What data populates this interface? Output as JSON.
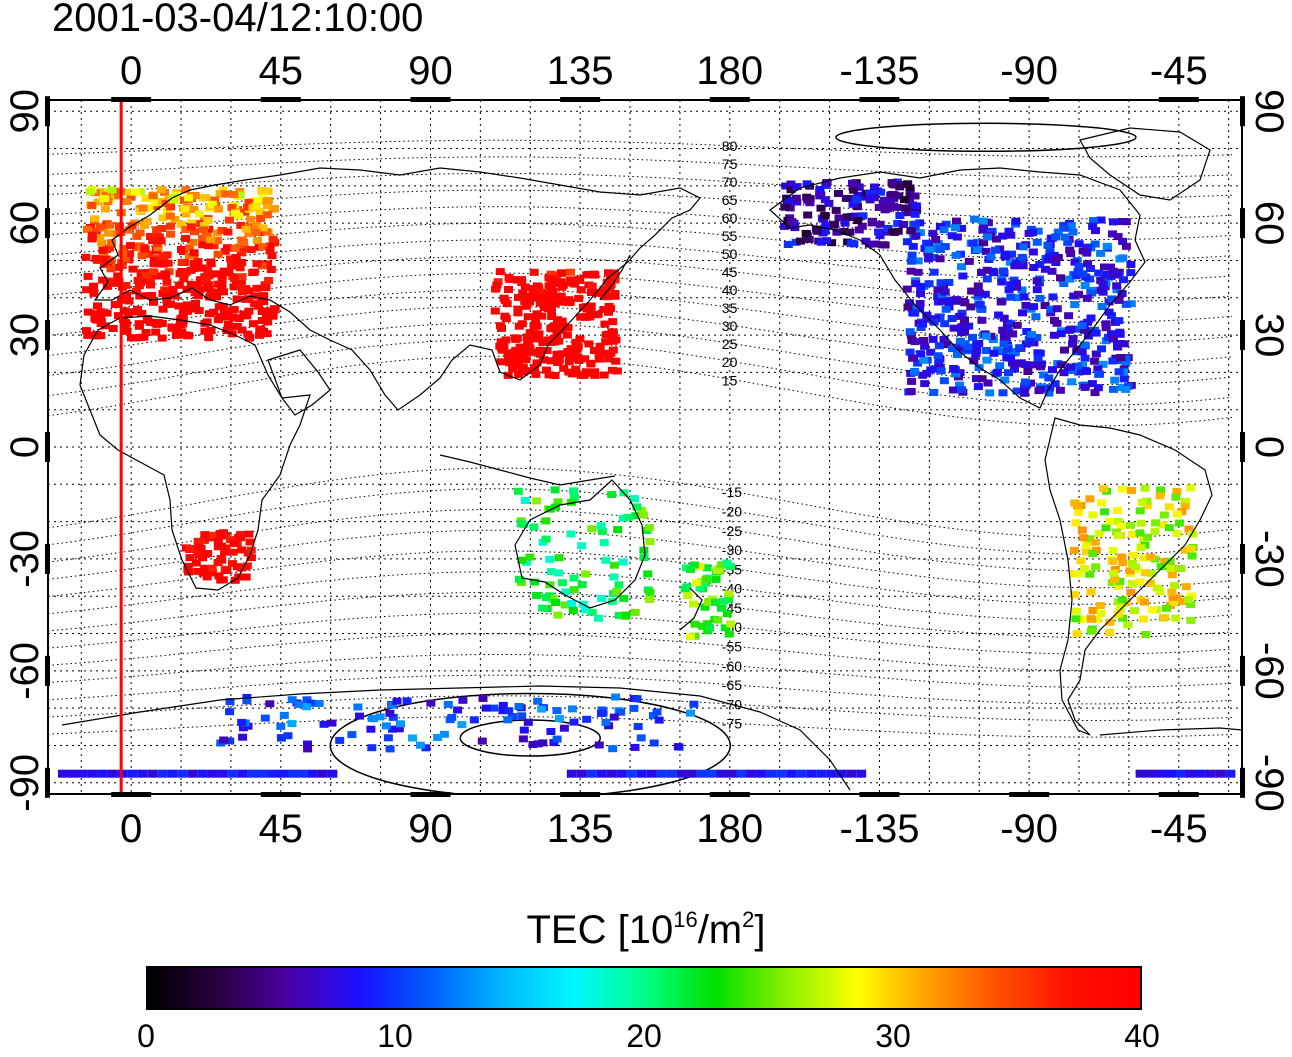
{
  "timestamp": "2001-03-04/12:10:00",
  "map": {
    "lon_ticks": [
      {
        "lon": 0,
        "label": "0"
      },
      {
        "lon": 45,
        "label": "45"
      },
      {
        "lon": 90,
        "label": "90"
      },
      {
        "lon": 135,
        "label": "135"
      },
      {
        "lon": 180,
        "label": "180"
      },
      {
        "lon": 225,
        "label": "-135"
      },
      {
        "lon": 270,
        "label": "-90"
      },
      {
        "lon": 315,
        "label": "-45"
      }
    ],
    "lat_ticks": [
      {
        "lat": 90,
        "label": "90"
      },
      {
        "lat": 60,
        "label": "60"
      },
      {
        "lat": 30,
        "label": "30"
      },
      {
        "lat": 0,
        "label": "0"
      },
      {
        "lat": -30,
        "label": "-30"
      },
      {
        "lat": -60,
        "label": "-60"
      },
      {
        "lat": -90,
        "label": "-90"
      }
    ],
    "lon_range": [
      -25,
      334
    ],
    "lat_range": [
      -93,
      93
    ],
    "grid": true,
    "marker_line_lon": -3,
    "marker_line_color": "#ff0000",
    "mlat_labels": [
      "80",
      "75",
      "70",
      "65",
      "60",
      "55",
      "50",
      "45",
      "40",
      "35",
      "30",
      "25",
      "20",
      "15",
      "-15",
      "-20",
      "-25",
      "-30",
      "-35",
      "-40",
      "-45",
      "-50",
      "-55",
      "-60",
      "-65",
      "-70",
      "-75"
    ]
  },
  "colorbar": {
    "title_prefix": "TEC  [10",
    "title_exp1": "16",
    "title_mid": "/m",
    "title_exp2": "2",
    "title_suffix": "]",
    "min": 0,
    "max": 40,
    "ticks": [
      "0",
      "10",
      "20",
      "30",
      "40"
    ],
    "colors": [
      "#000000",
      "#2a0040",
      "#4b00a8",
      "#1b10ff",
      "#0060ff",
      "#00b6ff",
      "#00f8ff",
      "#00ff88",
      "#00e000",
      "#88f000",
      "#ffff00",
      "#ffa000",
      "#ff5000",
      "#ff1000",
      "#ff0000"
    ]
  },
  "tec_regions": [
    {
      "region": "Europe",
      "tec": 40
    },
    {
      "region": "East Asia",
      "tec": 40
    },
    {
      "region": "North America",
      "tec": 9
    },
    {
      "region": "Alaska",
      "tec": 6
    },
    {
      "region": "South America",
      "tec": 28
    },
    {
      "region": "Australia",
      "tec": 22
    },
    {
      "region": "New Zealand",
      "tec": 24
    },
    {
      "region": "South Africa",
      "tec": 40
    },
    {
      "region": "Antarctica",
      "tec": 10
    }
  ]
}
